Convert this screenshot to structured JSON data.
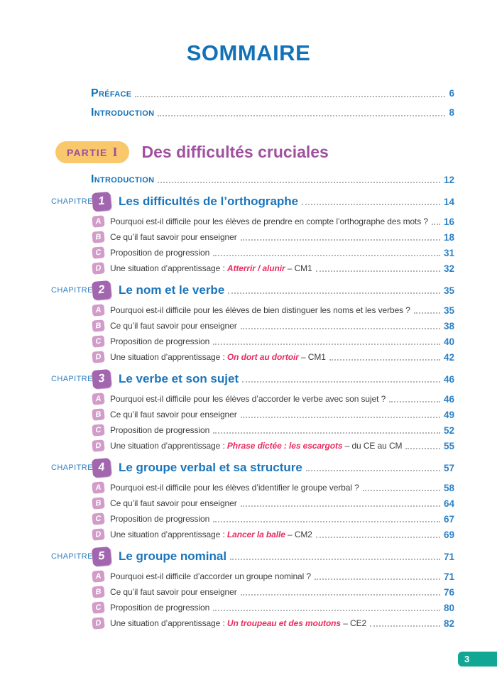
{
  "page": {
    "title": "SOMMAIRE",
    "page_number": "3"
  },
  "colors": {
    "accent_blue": "#1272b8",
    "page_number_blue": "#2e82c6",
    "partie_purple": "#a0509f",
    "partie_badge_yellow": "#f9c76c",
    "chapter_badge_purple": "#a266ae",
    "letter_badge_pink": "#d29cc9",
    "highlight_red": "#e82d5f",
    "page_badge_teal": "#12a794",
    "body_text": "#3d3d3d"
  },
  "front_matter": [
    {
      "label": "Préface",
      "page": "6"
    },
    {
      "label": "Introduction",
      "page": "8"
    }
  ],
  "partie": {
    "badge_label": "PARTIE",
    "numeral": "I",
    "title": "Des difficultés cruciales",
    "intro": {
      "label": "Introduction",
      "page": "12"
    }
  },
  "chapitre_label": "CHAPITRE",
  "chapters": [
    {
      "number": "1",
      "title": "Les difficultés de l’orthographe",
      "page": "14",
      "items": [
        {
          "letter": "A",
          "text": "Pourquoi est-il difficile pour les élèves de prendre en compte l’orthographe des mots ?",
          "page": "16"
        },
        {
          "letter": "B",
          "text": "Ce qu’il faut savoir pour enseigner",
          "page": "18"
        },
        {
          "letter": "C",
          "text": "Proposition de progression",
          "page": "31"
        },
        {
          "letter": "D",
          "text": "Une situation d’apprentissage : ",
          "highlight": "Atterrir / alunir",
          "suffix": " – CM1",
          "page": "32"
        }
      ]
    },
    {
      "number": "2",
      "title": "Le nom et le verbe",
      "page": "35",
      "items": [
        {
          "letter": "A",
          "text": "Pourquoi est-il difficile pour les élèves de bien distinguer les noms et les verbes ?",
          "page": "35"
        },
        {
          "letter": "B",
          "text": "Ce qu’il faut savoir pour enseigner",
          "page": "38"
        },
        {
          "letter": "C",
          "text": "Proposition de progression",
          "page": "40"
        },
        {
          "letter": "D",
          "text": "Une situation d’apprentissage : ",
          "highlight": "On dort au dortoir",
          "suffix": " – CM1",
          "page": "42"
        }
      ]
    },
    {
      "number": "3",
      "title": "Le verbe et son sujet",
      "page": "46",
      "items": [
        {
          "letter": "A",
          "text": "Pourquoi est-il difficile pour les élèves d’accorder le verbe avec son sujet ?",
          "page": "46"
        },
        {
          "letter": "B",
          "text": "Ce qu’il faut savoir pour enseigner",
          "page": "49"
        },
        {
          "letter": "C",
          "text": "Proposition de progression",
          "page": "52"
        },
        {
          "letter": "D",
          "text": "Une situation d’apprentissage : ",
          "highlight": "Phrase dictée : les escargots",
          "suffix": " – du CE au CM",
          "page": "55"
        }
      ]
    },
    {
      "number": "4",
      "title": "Le groupe verbal et sa structure",
      "page": "57",
      "items": [
        {
          "letter": "A",
          "text": "Pourquoi est-il difficile pour les élèves d’identifier le groupe verbal ?",
          "page": "58"
        },
        {
          "letter": "B",
          "text": "Ce qu’il faut savoir pour enseigner",
          "page": "64"
        },
        {
          "letter": "C",
          "text": "Proposition de progression",
          "page": "67"
        },
        {
          "letter": "D",
          "text": "Une situation d’apprentissage : ",
          "highlight": "Lancer la balle",
          "suffix": " – CM2",
          "page": "69"
        }
      ]
    },
    {
      "number": "5",
      "title": "Le groupe nominal",
      "page": "71",
      "items": [
        {
          "letter": "A",
          "text": "Pourquoi est-il difficile d’accorder un groupe nominal ?",
          "page": "71"
        },
        {
          "letter": "B",
          "text": "Ce qu’il faut savoir pour enseigner",
          "page": "76"
        },
        {
          "letter": "C",
          "text": "Proposition de progression",
          "page": "80"
        },
        {
          "letter": "D",
          "text": "Une situation d’apprentissage : ",
          "highlight": "Un troupeau et des moutons",
          "suffix": " – CE2",
          "page": "82"
        }
      ]
    }
  ]
}
